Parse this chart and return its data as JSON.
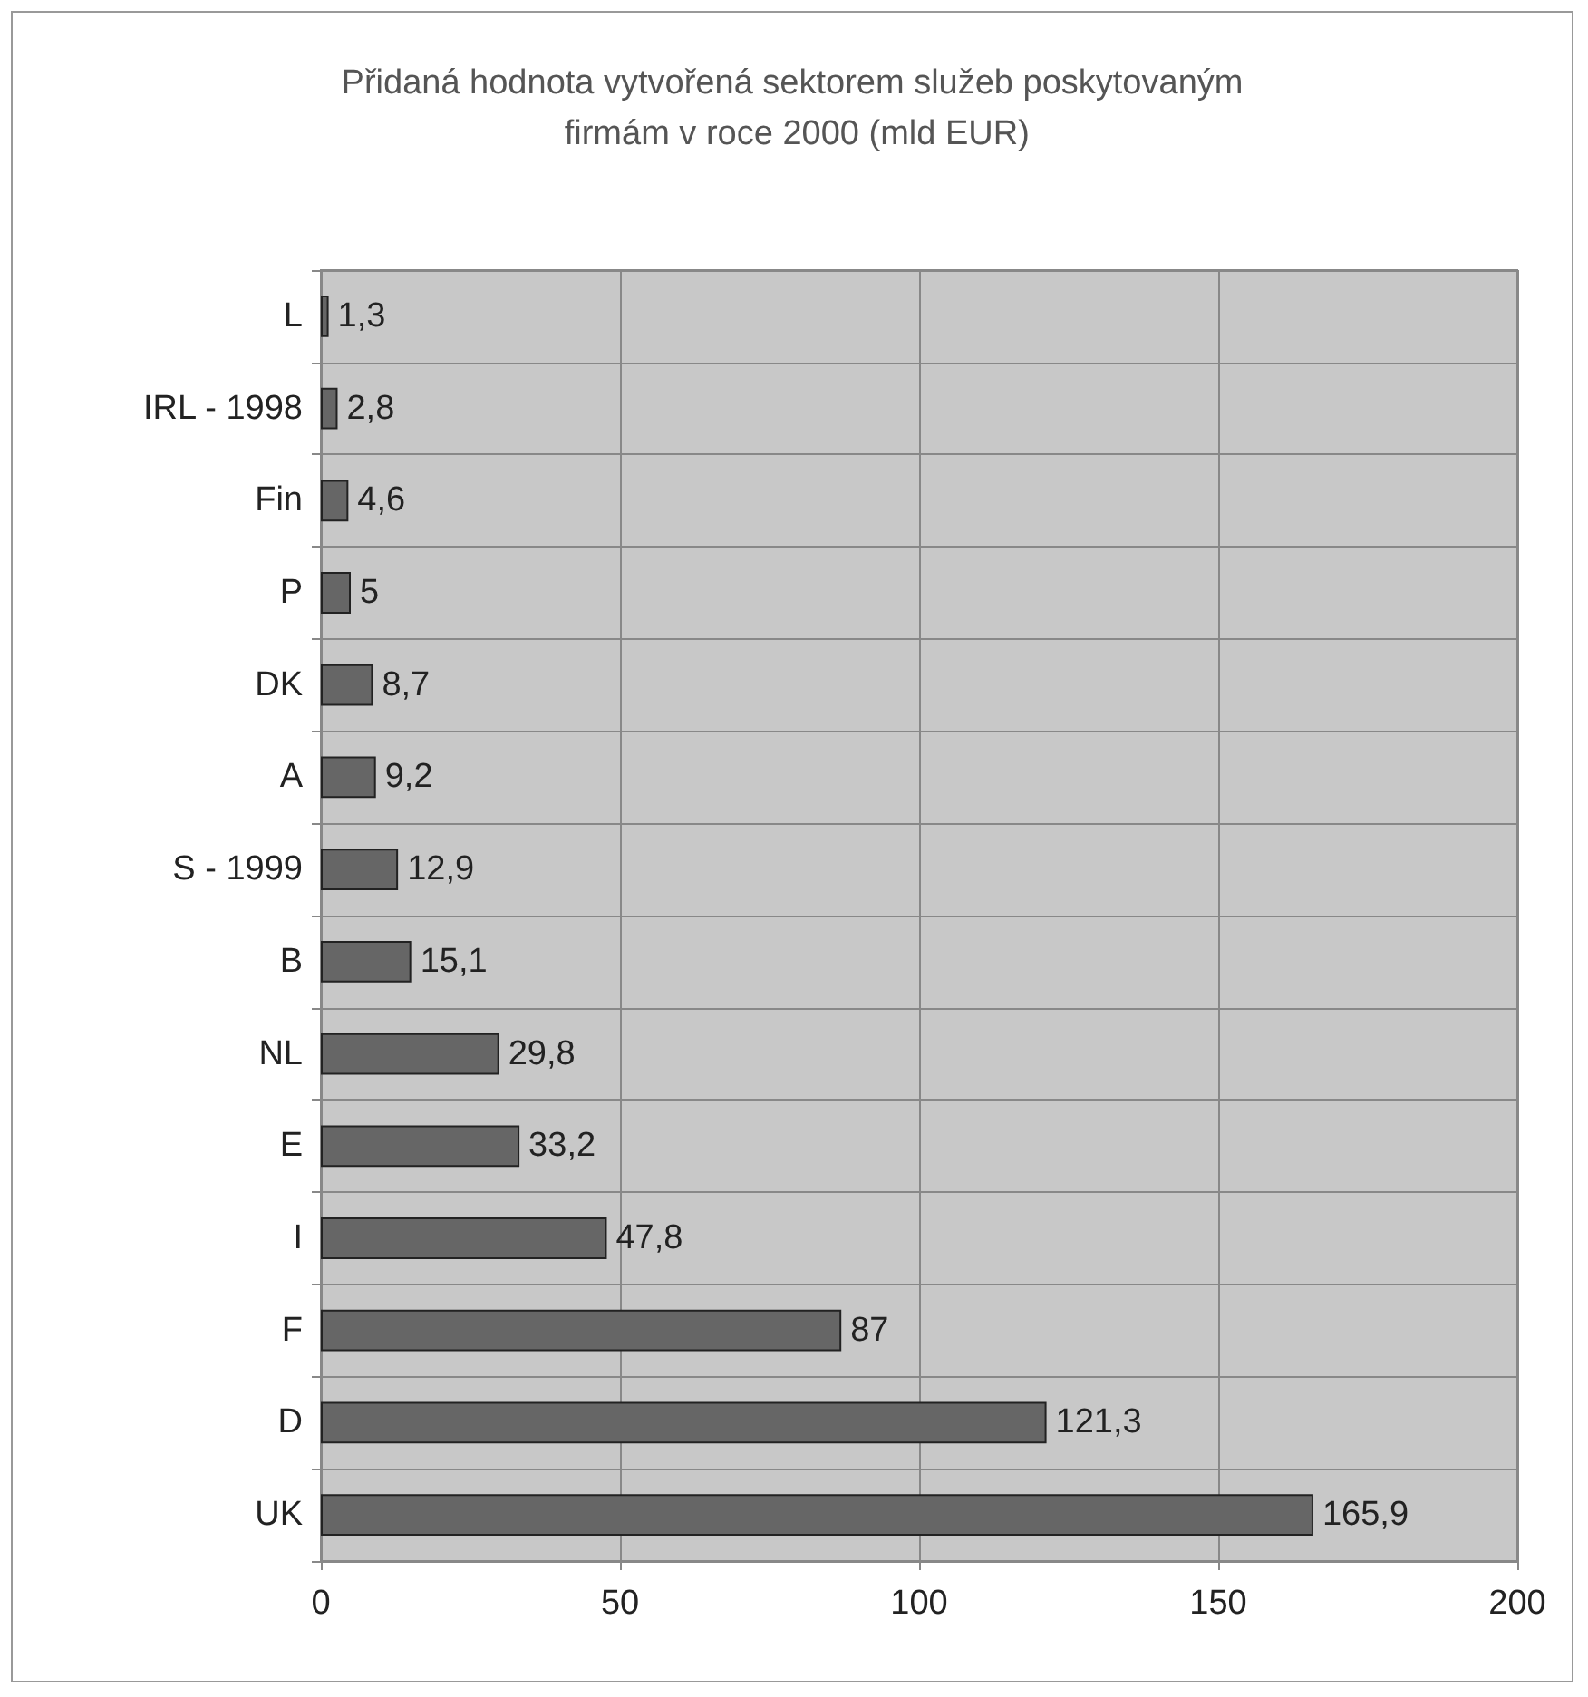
{
  "chart_data": {
    "type": "bar",
    "orientation": "horizontal",
    "title": "Přidaná hodnota vytvořená sektorem služeb poskytovaným firmám v roce 2000 (mld EUR)",
    "categories": [
      "L",
      "IRL - 1998",
      "Fin",
      "P",
      "DK",
      "A",
      "S - 1999",
      "B",
      "NL",
      "E",
      "I",
      "F",
      "D",
      "UK"
    ],
    "values": [
      1.3,
      2.8,
      4.6,
      5,
      8.7,
      9.2,
      12.9,
      15.1,
      29.8,
      33.2,
      47.8,
      87,
      121.3,
      165.9
    ],
    "value_labels": [
      "1,3",
      "2,8",
      "4,6",
      "5",
      "8,7",
      "9,2",
      "12,9",
      "15,1",
      "29,8",
      "33,2",
      "47,8",
      "87",
      "121,3",
      "165,9"
    ],
    "color": "#666666",
    "xlim": [
      0,
      200
    ],
    "xticks": [
      0,
      50,
      100,
      150,
      200
    ],
    "grid": true
  }
}
